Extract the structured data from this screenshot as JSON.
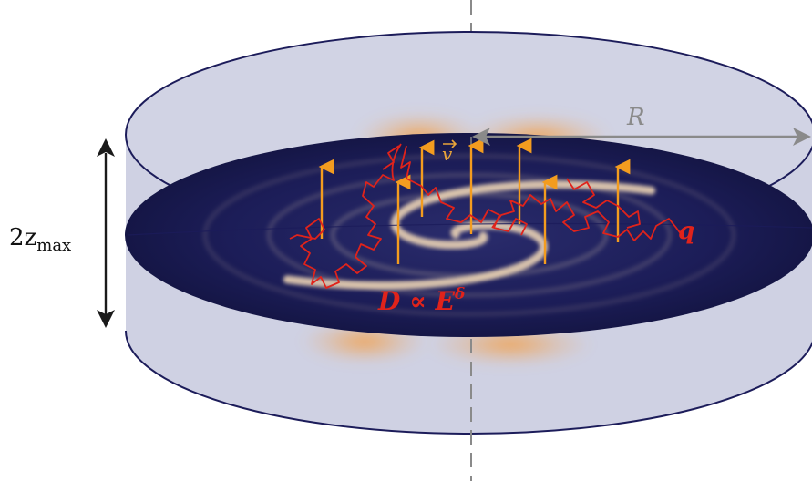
{
  "labels": {
    "height_label": "2z",
    "height_sub": "max",
    "radius_label": "R",
    "velocity_label": "v",
    "diffusion_label": "D ∝ E",
    "diffusion_exp": "δ",
    "particle_label": "q"
  },
  "colors": {
    "cylinder_fill": "#cfd1e3",
    "cylinder_edge": "#1c1c5a",
    "disk_dark": "#1a1b52",
    "arm_light": "#f6dcb8",
    "halo": "#f3a04a",
    "wind_arrows": "#f39c1f",
    "cr_paths": "#e0231b",
    "axis_line": "#8a8a8a",
    "dimension_arrow": "#1a1a1a"
  },
  "icons": {
    "wind": "arrow-up",
    "radius": "double-arrow-horizontal",
    "height": "double-arrow-vertical"
  }
}
